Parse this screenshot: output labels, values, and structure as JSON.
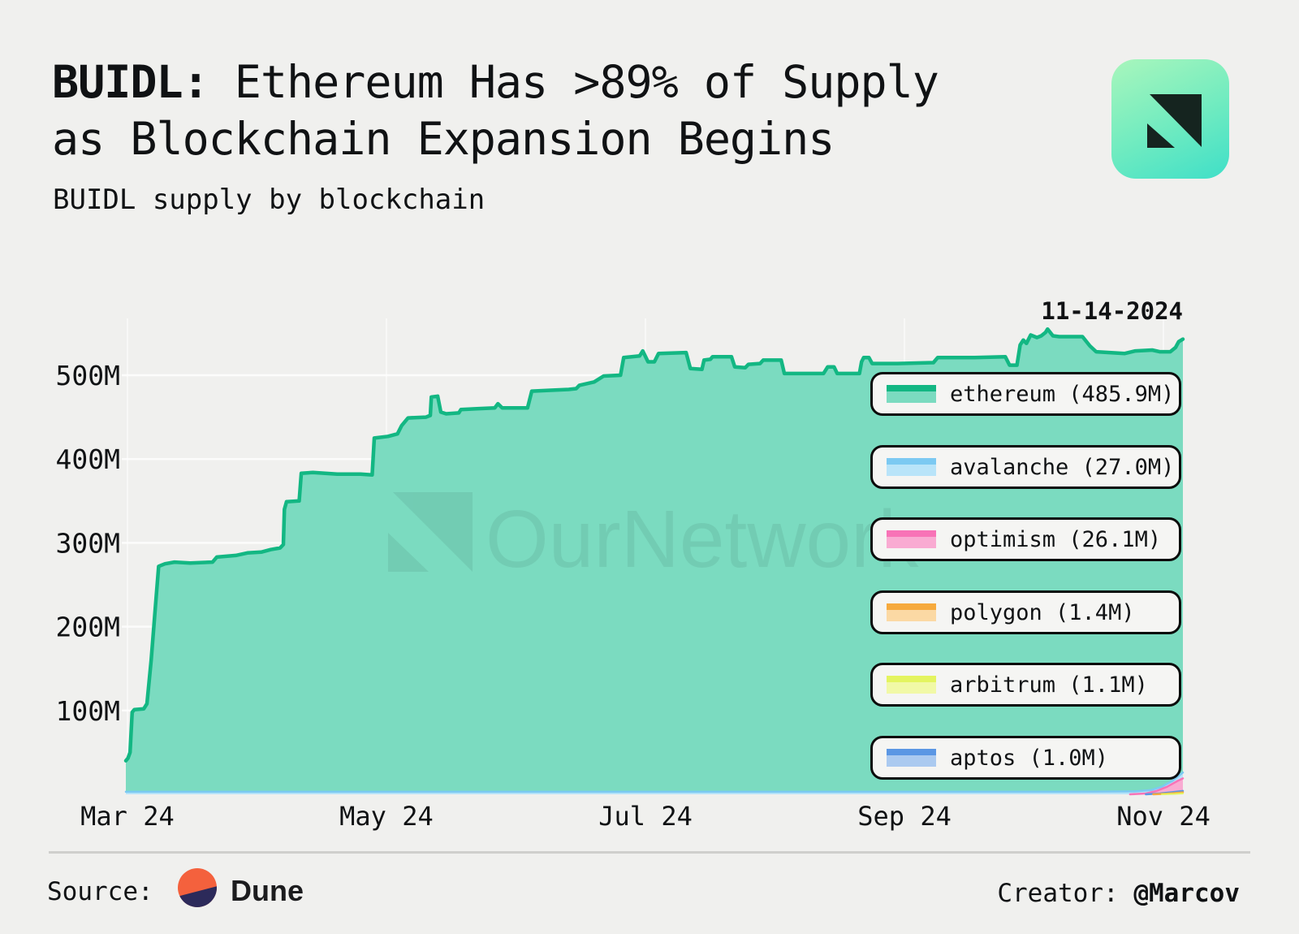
{
  "header": {
    "title_prefix": "BUIDL:",
    "title_line1_rest": " Ethereum Has >89% of Supply",
    "title_line2": "as Blockchain Expansion Begins",
    "subtitle": "BUIDL supply by blockchain"
  },
  "watermark": {
    "text": "OurNetwork"
  },
  "chart": {
    "date_label": "11-14-2024",
    "background": "#F0F0EE",
    "grid_color": "#FFFFFF"
  },
  "chart_data": {
    "type": "area",
    "stacked": true,
    "title": "BUIDL: Ethereum Has >89% of Supply as Blockchain Expansion Begins",
    "subtitle": "BUIDL supply by blockchain",
    "annotation_date": "11-14-2024",
    "x_axis": {
      "ticks": [
        {
          "label": "Mar 24",
          "fx": 0.0015
        },
        {
          "label": "May 24",
          "fx": 0.2465
        },
        {
          "label": "Jul 24",
          "fx": 0.4916
        },
        {
          "label": "Sep 24",
          "fx": 0.7366
        },
        {
          "label": "Nov 24",
          "fx": 0.9816
        }
      ]
    },
    "y_axis": {
      "unit": "M tokens",
      "ylim": [
        0,
        570
      ],
      "grid": true,
      "ticks": [
        {
          "label": "500M",
          "value": 500
        },
        {
          "label": "400M",
          "value": 400
        },
        {
          "label": "300M",
          "value": 300
        },
        {
          "label": "200M",
          "value": 200
        },
        {
          "label": "100M",
          "value": 100
        }
      ]
    },
    "series_note": "points are [fraction-of-x-range, cumulative stacked top in millions]; paint order bottom-up as listed",
    "series": [
      {
        "name": "ethereum",
        "legend_value": "485.9M",
        "fill": "#7BDBC0",
        "stroke": "#13B783",
        "stroke_width": 4.5,
        "points_cumulative_top": [
          [
            0.0,
            40
          ],
          [
            0.002,
            43
          ],
          [
            0.004,
            50
          ],
          [
            0.006,
            98
          ],
          [
            0.008,
            101
          ],
          [
            0.017,
            102
          ],
          [
            0.02,
            108
          ],
          [
            0.024,
            160
          ],
          [
            0.028,
            225
          ],
          [
            0.031,
            272
          ],
          [
            0.037,
            275
          ],
          [
            0.046,
            277
          ],
          [
            0.061,
            276
          ],
          [
            0.082,
            277
          ],
          [
            0.086,
            283
          ],
          [
            0.104,
            285
          ],
          [
            0.115,
            288
          ],
          [
            0.128,
            289
          ],
          [
            0.137,
            292
          ],
          [
            0.146,
            294
          ],
          [
            0.149,
            298
          ],
          [
            0.15,
            340
          ],
          [
            0.152,
            349
          ],
          [
            0.164,
            350
          ],
          [
            0.166,
            383
          ],
          [
            0.177,
            384
          ],
          [
            0.2,
            382
          ],
          [
            0.222,
            382
          ],
          [
            0.233,
            381
          ],
          [
            0.235,
            425
          ],
          [
            0.248,
            427
          ],
          [
            0.257,
            430
          ],
          [
            0.261,
            440
          ],
          [
            0.267,
            449
          ],
          [
            0.284,
            450
          ],
          [
            0.288,
            452
          ],
          [
            0.289,
            474
          ],
          [
            0.295,
            475
          ],
          [
            0.298,
            456
          ],
          [
            0.303,
            454
          ],
          [
            0.315,
            455
          ],
          [
            0.317,
            459
          ],
          [
            0.332,
            460
          ],
          [
            0.349,
            461
          ],
          [
            0.352,
            466
          ],
          [
            0.356,
            461
          ],
          [
            0.38,
            461
          ],
          [
            0.384,
            481
          ],
          [
            0.4,
            482
          ],
          [
            0.419,
            483
          ],
          [
            0.426,
            484
          ],
          [
            0.429,
            488
          ],
          [
            0.443,
            492
          ],
          [
            0.452,
            499
          ],
          [
            0.468,
            500
          ],
          [
            0.471,
            521
          ],
          [
            0.486,
            523
          ],
          [
            0.489,
            529
          ],
          [
            0.494,
            516
          ],
          [
            0.5,
            516
          ],
          [
            0.504,
            526
          ],
          [
            0.53,
            527
          ],
          [
            0.534,
            508
          ],
          [
            0.545,
            507
          ],
          [
            0.547,
            518
          ],
          [
            0.553,
            519
          ],
          [
            0.555,
            522
          ],
          [
            0.573,
            522
          ],
          [
            0.576,
            510
          ],
          [
            0.586,
            509
          ],
          [
            0.589,
            513
          ],
          [
            0.6,
            514
          ],
          [
            0.603,
            518
          ],
          [
            0.62,
            518
          ],
          [
            0.623,
            502
          ],
          [
            0.66,
            502
          ],
          [
            0.664,
            510
          ],
          [
            0.67,
            510
          ],
          [
            0.673,
            502
          ],
          [
            0.694,
            502
          ],
          [
            0.696,
            516
          ],
          [
            0.698,
            521
          ],
          [
            0.703,
            521
          ],
          [
            0.706,
            514
          ],
          [
            0.73,
            514
          ],
          [
            0.764,
            515
          ],
          [
            0.768,
            521
          ],
          [
            0.803,
            521
          ],
          [
            0.832,
            522
          ],
          [
            0.836,
            512
          ],
          [
            0.843,
            512
          ],
          [
            0.846,
            536
          ],
          [
            0.849,
            542
          ],
          [
            0.852,
            538
          ],
          [
            0.856,
            548
          ],
          [
            0.862,
            545
          ],
          [
            0.866,
            547
          ],
          [
            0.87,
            551
          ],
          [
            0.872,
            555
          ],
          [
            0.877,
            547
          ],
          [
            0.883,
            546
          ],
          [
            0.905,
            546
          ],
          [
            0.912,
            535
          ],
          [
            0.918,
            528
          ],
          [
            0.945,
            526
          ],
          [
            0.955,
            529
          ],
          [
            0.971,
            530
          ],
          [
            0.978,
            528
          ],
          [
            0.988,
            528
          ],
          [
            0.993,
            533
          ],
          [
            0.996,
            540
          ],
          [
            1.0,
            543
          ]
        ]
      },
      {
        "name": "avalanche",
        "legend_value": "27.0M",
        "fill": "#B9E4F9",
        "stroke": "#7CC9F2",
        "stroke_width": 2.5,
        "points_cumulative_top": [
          [
            0.0,
            3
          ],
          [
            0.9,
            3
          ],
          [
            0.955,
            3.5
          ],
          [
            0.97,
            5
          ],
          [
            0.98,
            9
          ],
          [
            0.99,
            16
          ],
          [
            1.0,
            26
          ]
        ]
      },
      {
        "name": "optimism",
        "legend_value": "26.1M",
        "fill": "#F9ABD2",
        "stroke": "#F873B7",
        "stroke_width": 2.5,
        "points_cumulative_top": [
          [
            0.0,
            0
          ],
          [
            0.95,
            0
          ],
          [
            0.965,
            1
          ],
          [
            0.975,
            4
          ],
          [
            0.985,
            9
          ],
          [
            0.995,
            16
          ],
          [
            1.0,
            19
          ]
        ]
      },
      {
        "name": "aptos",
        "legend_value": "1.0M",
        "fill": "#ABCAF0",
        "stroke": "#5B97E4",
        "stroke_width": 2.5,
        "points_cumulative_top": [
          [
            0.0,
            0
          ],
          [
            0.965,
            0
          ],
          [
            0.978,
            1
          ],
          [
            0.99,
            2.5
          ],
          [
            1.0,
            4
          ]
        ]
      },
      {
        "name": "polygon",
        "legend_value": "1.4M",
        "fill": "#FBD9A4",
        "stroke": "#F6AA3D",
        "stroke_width": 2.5,
        "points_cumulative_top": [
          [
            0.0,
            0
          ],
          [
            0.972,
            0
          ],
          [
            0.985,
            0.8
          ],
          [
            1.0,
            2.3
          ]
        ]
      },
      {
        "name": "arbitrum",
        "legend_value": "1.1M",
        "fill": "#F1F9A6",
        "stroke": "#E4F45F",
        "stroke_width": 2,
        "points_cumulative_top": [
          [
            0.0,
            0
          ],
          [
            0.98,
            0
          ],
          [
            0.992,
            0.5
          ],
          [
            1.0,
            1.1
          ]
        ]
      }
    ],
    "legend_position": "right-inside"
  },
  "legend": {
    "items": [
      {
        "name": "ethereum",
        "display": "ethereum (485.9M)",
        "fill": "#7BDBC0",
        "stroke": "#13B783"
      },
      {
        "name": "avalanche",
        "display": "avalanche (27.0M)",
        "fill": "#B9E4F9",
        "stroke": "#7CC9F2"
      },
      {
        "name": "optimism",
        "display": "optimism (26.1M)",
        "fill": "#F9ABD2",
        "stroke": "#F873B7"
      },
      {
        "name": "polygon",
        "display": "polygon (1.4M)",
        "fill": "#FBD9A4",
        "stroke": "#F6AA3D"
      },
      {
        "name": "arbitrum",
        "display": "arbitrum (1.1M)",
        "fill": "#F1F9A6",
        "stroke": "#E4F45F"
      },
      {
        "name": "aptos",
        "display": "aptos (1.0M)",
        "fill": "#ABCAF0",
        "stroke": "#5B97E4"
      }
    ]
  },
  "footer": {
    "source_label": "Source:",
    "source_name": "Dune",
    "creator_label": "Creator: ",
    "creator_handle": "@Marcov",
    "dune_top_color": "#F4613D",
    "dune_bottom_color": "#2C2A5A"
  }
}
